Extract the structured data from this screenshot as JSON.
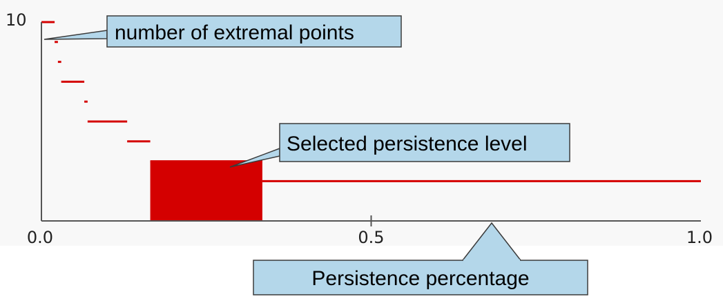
{
  "chart_data": {
    "type": "line",
    "style": "step",
    "title": "",
    "xlabel": "Persistence percentage",
    "ylabel": "number of extremal points",
    "xlim": [
      0.0,
      1.0
    ],
    "ylim": [
      0,
      10
    ],
    "x_ticks": [
      "0.0",
      "0.5",
      "1.0"
    ],
    "y_ticks": [
      "10"
    ],
    "grid": false,
    "segments": [
      {
        "x_start": 0.0,
        "x_end": 0.02,
        "value": 10
      },
      {
        "x_start": 0.02,
        "x_end": 0.025,
        "value": 9
      },
      {
        "x_start": 0.025,
        "x_end": 0.03,
        "value": 8
      },
      {
        "x_start": 0.03,
        "x_end": 0.065,
        "value": 7
      },
      {
        "x_start": 0.065,
        "x_end": 0.07,
        "value": 6
      },
      {
        "x_start": 0.07,
        "x_end": 0.13,
        "value": 5
      },
      {
        "x_start": 0.13,
        "x_end": 0.165,
        "value": 4
      },
      {
        "x_start": 0.165,
        "x_end": 0.335,
        "value": 3
      },
      {
        "x_start": 0.335,
        "x_end": 1.0,
        "value": 2
      }
    ],
    "selected": {
      "x_start": 0.165,
      "x_end": 0.335,
      "value": 3
    },
    "annotations": {
      "count": "number of extremal points",
      "selected": "Selected persistence level",
      "axis": "Persistence percentage"
    }
  },
  "colors": {
    "series": "#d40000",
    "axis": "#555555",
    "callout_fill": "#b4d7ea",
    "callout_stroke": "#3b3b3b",
    "plot_background": "#f8f8f8"
  }
}
